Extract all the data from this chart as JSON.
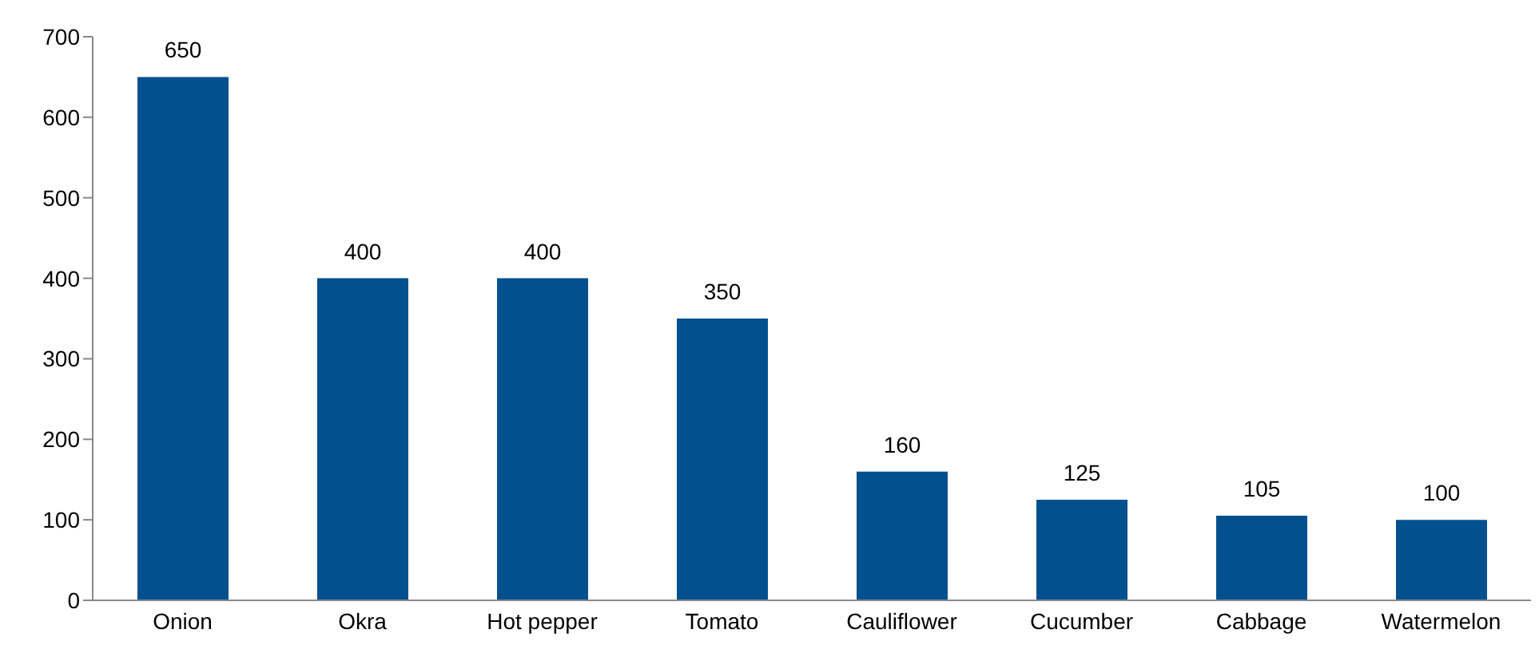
{
  "chart_data": {
    "type": "bar",
    "categories": [
      "Onion",
      "Okra",
      "Hot pepper",
      "Tomato",
      "Cauliflower",
      "Cucumber",
      "Cabbage",
      "Watermelon"
    ],
    "values": [
      650,
      400,
      400,
      350,
      160,
      125,
      105,
      100
    ],
    "color": "#03508f",
    "ylim": [
      0,
      700
    ],
    "yticks": [
      0,
      100,
      200,
      300,
      400,
      500,
      600,
      700
    ],
    "grid": false,
    "data_labels": true,
    "legend": false
  }
}
